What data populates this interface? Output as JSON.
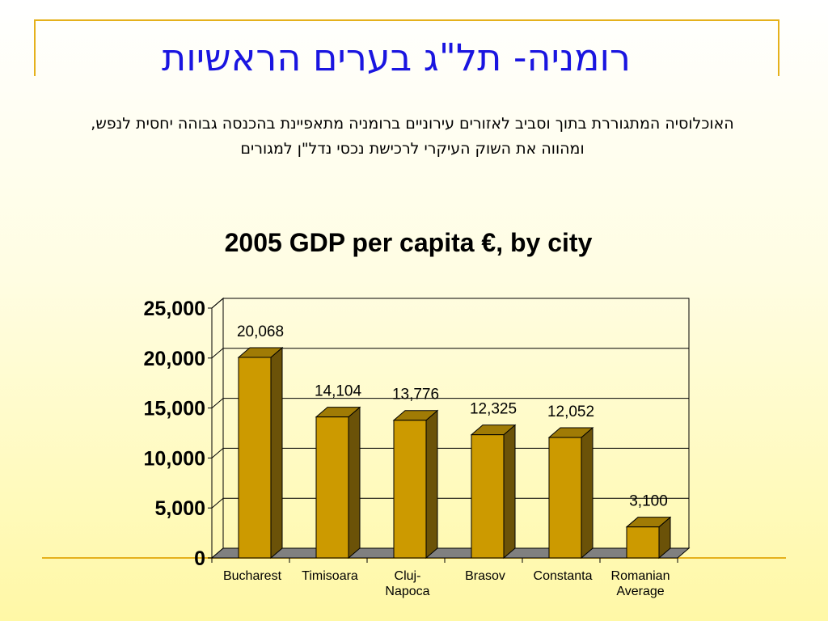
{
  "slide": {
    "title": "רומניה- תל\"ג בערים הראשיות",
    "subtitle": "האוכלוסיה המתגוררת בתוך וסביב לאזורים עירוניים ברומניה מתאפיינת בהכנסה גבוהה יחסית לנפש, ומהווה את השוק העיקרי לרכישת נכסי נדל\"ן למגורים"
  },
  "chart_data": {
    "type": "bar",
    "title": "2005 GDP per capita €, by city",
    "categories": [
      "Bucharest",
      "Timisoara",
      "Cluj-Napoca",
      "Brasov",
      "Constanta",
      "Romanian Average"
    ],
    "category_lines": [
      [
        "Bucharest"
      ],
      [
        "Timisoara"
      ],
      [
        "Cluj-",
        "Napoca"
      ],
      [
        "Brasov"
      ],
      [
        "Constanta"
      ],
      [
        "Romanian",
        "Average"
      ]
    ],
    "values": [
      20068,
      14104,
      13776,
      12325,
      12052,
      3100
    ],
    "data_labels": [
      "20,068",
      "14,104",
      "13,776",
      "12,325",
      "12,052",
      "3,100"
    ],
    "y_ticks": [
      0,
      5000,
      10000,
      15000,
      20000,
      25000
    ],
    "y_tick_labels": [
      "0",
      "5,000",
      "10,000",
      "15,000",
      "20,000",
      "25,000"
    ],
    "ylim": [
      0,
      25000
    ],
    "grid": true,
    "style": "3d-column",
    "colors": {
      "bar_front": "#cc9a00",
      "bar_top": "#a07b05",
      "bar_side": "#6b5208",
      "floor": "#808080",
      "title_blue": "#1a15e0",
      "frame_gold": "#e5b11c"
    }
  }
}
